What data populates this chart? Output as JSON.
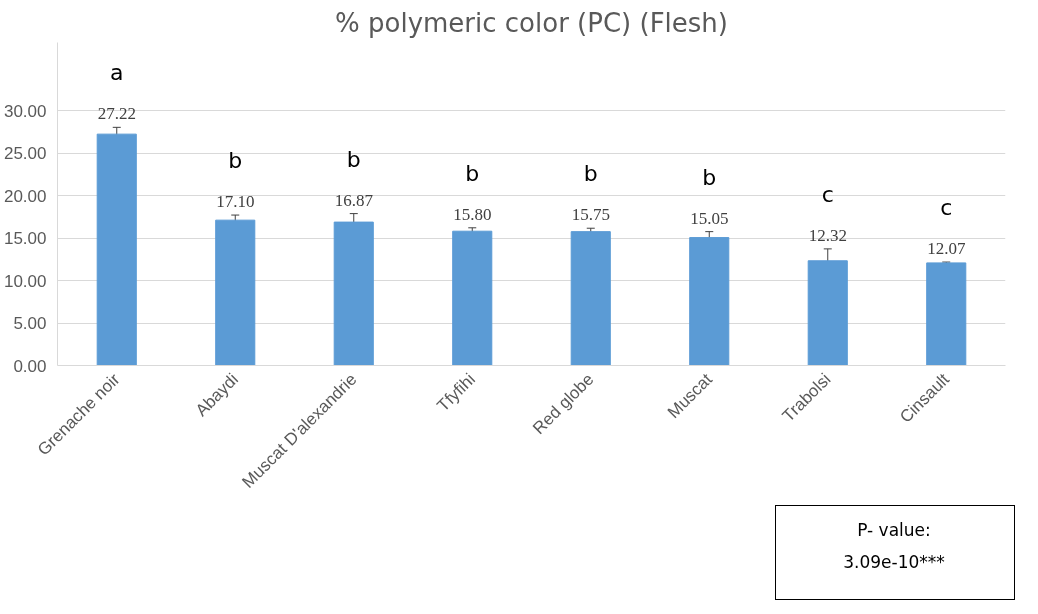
{
  "chart_data": {
    "type": "bar",
    "title": "% polymeric color (PC) (Flesh)",
    "categories": [
      "Grenache noir",
      "Abaydi",
      "Muscat D'alexandrie",
      "Tfyfihi",
      "Red globe",
      "Muscat",
      "Trabolsi",
      "Cinsault"
    ],
    "values": [
      27.22,
      17.1,
      16.87,
      15.8,
      15.75,
      15.05,
      12.32,
      12.07
    ],
    "value_labels": [
      "27.22",
      "17.10",
      "16.87",
      "15.80",
      "15.75",
      "15.05",
      "12.32",
      "12.07"
    ],
    "errors": [
      0.8,
      0.6,
      1.0,
      0.4,
      0.4,
      0.7,
      1.4,
      0.1
    ],
    "color": "#5b9bd5",
    "ylim": [
      0,
      38
    ],
    "yticks": [
      {
        "value": 0,
        "label": "0.00"
      },
      {
        "value": 5,
        "label": "5.00"
      },
      {
        "value": 10,
        "label": "10.00"
      },
      {
        "value": 15,
        "label": "15.00"
      },
      {
        "value": 20,
        "label": "20.00"
      },
      {
        "value": 25,
        "label": "25.00"
      },
      {
        "value": 30,
        "label": "30.00"
      }
    ],
    "grid": "y",
    "annotations": [
      "a",
      "b",
      "b",
      "b",
      "b",
      "b",
      "c",
      "c",
      "P- value:\n3.09e-10***"
    ]
  }
}
